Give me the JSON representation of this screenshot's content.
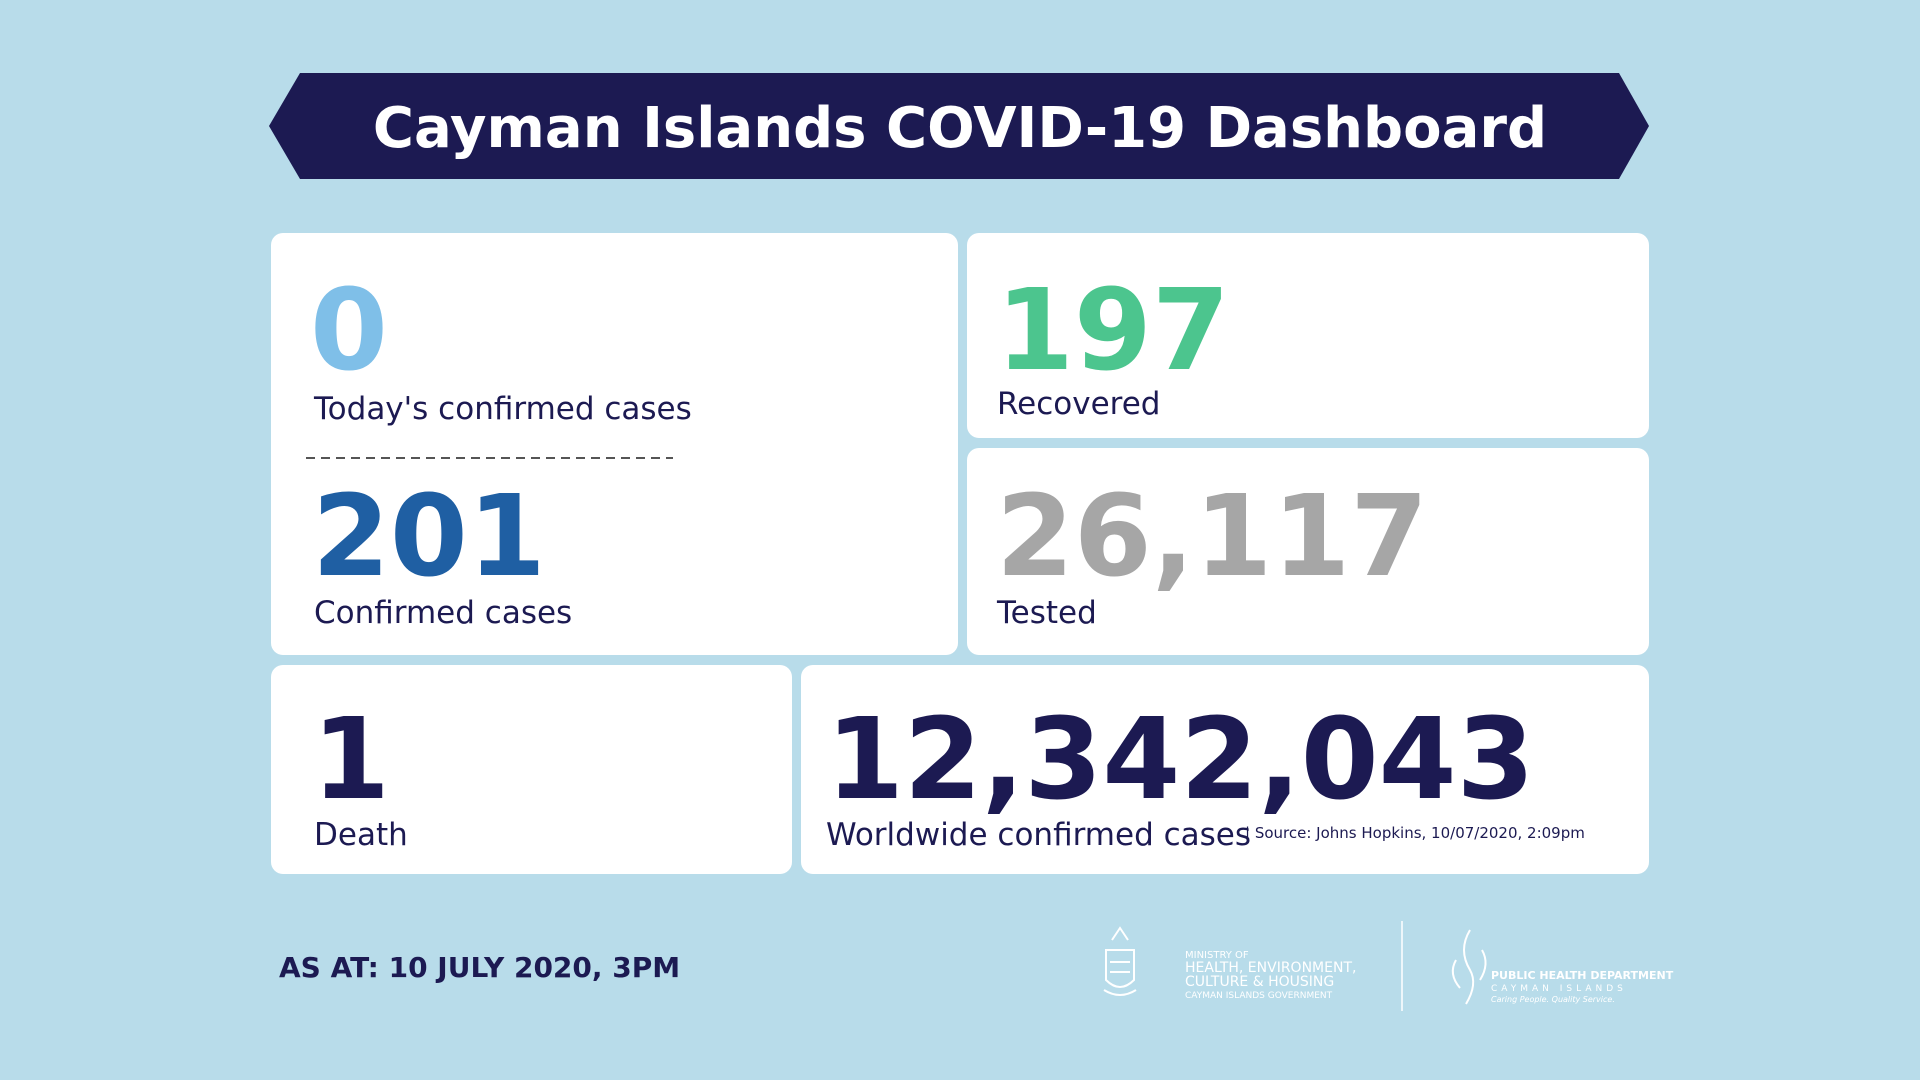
{
  "header": {
    "title": "Cayman Islands COVID-19 Dashboard"
  },
  "cards": [
    {
      "value": "0",
      "label": "Today's confirmed cases"
    },
    {
      "value": "201",
      "label": "Confirmed cases"
    },
    {
      "value": "197",
      "label": "Recovered"
    },
    {
      "value": "26,117",
      "label": "Tested"
    },
    {
      "value": "1",
      "label": "Death"
    },
    {
      "value": "12,342,043",
      "label": "Worldwide confirmed cases",
      "note": "| Source: Johns Hopkins, 10/07/2020, 2:09pm"
    }
  ],
  "footer": {
    "as_at": "AS AT: 10 JULY 2020, 3PM",
    "ministry": [
      "MINISTRY OF",
      "HEALTH, ENVIRONMENT,",
      "CULTURE & HOUSING",
      "CAYMAN ISLANDS GOVERNMENT"
    ],
    "public_health": [
      "PUBLIC HEALTH DEPARTMENT",
      "CAYMAN ISLANDS",
      "Caring People. Quality Service."
    ]
  }
}
